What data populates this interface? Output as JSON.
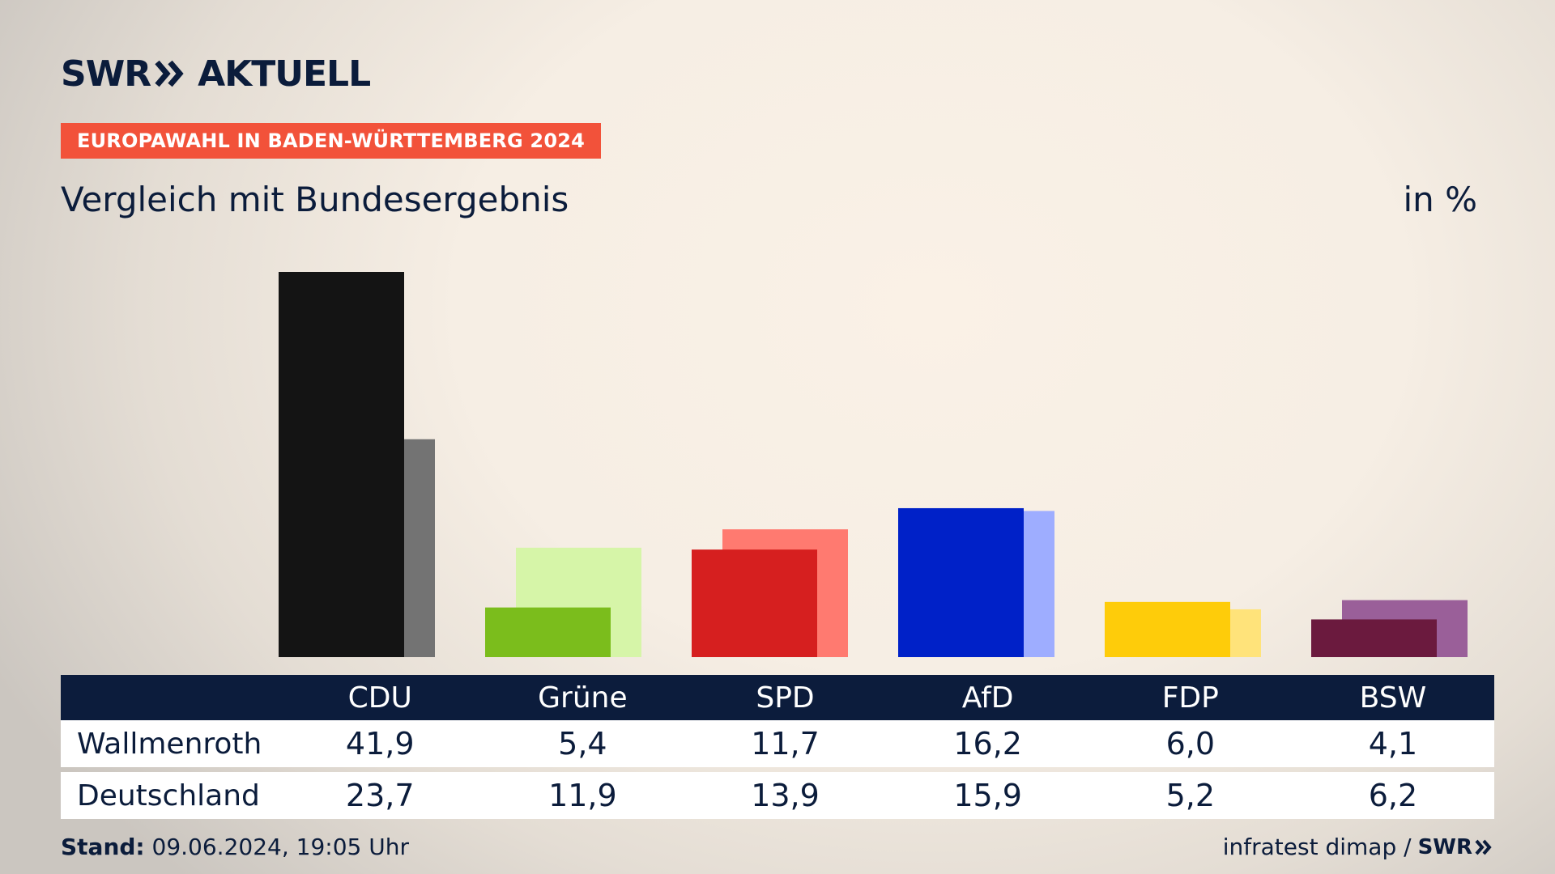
{
  "header": {
    "brand_left": "SWR",
    "brand_right": "AKTUELL",
    "badge": "EUROPAWAHL IN BADEN-WÜRTTEMBERG 2024",
    "subtitle": "Vergleich mit Bundesergebnis",
    "unit": "in %"
  },
  "table": {
    "columns": [
      "CDU",
      "Grüne",
      "SPD",
      "AfD",
      "FDP",
      "BSW"
    ],
    "rows": [
      {
        "label": "Wallmenroth",
        "values": [
          "41,9",
          "5,4",
          "11,7",
          "16,2",
          "6,0",
          "4,1"
        ]
      },
      {
        "label": "Deutschland",
        "values": [
          "23,7",
          "11,9",
          "13,9",
          "15,9",
          "5,2",
          "6,2"
        ]
      }
    ]
  },
  "footer": {
    "stand_label": "Stand:",
    "stand_value": " 09.06.2024, 19:05 Uhr",
    "source": "infratest dimap /",
    "source_brand": "SWR"
  },
  "chart_data": {
    "type": "bar",
    "categories": [
      "CDU",
      "Grüne",
      "SPD",
      "AfD",
      "FDP",
      "BSW"
    ],
    "series": [
      {
        "name": "Wallmenroth",
        "values": [
          41.9,
          5.4,
          11.7,
          16.2,
          6.0,
          4.1
        ],
        "colors": [
          "#141414",
          "#7bbd1c",
          "#d61f1f",
          "#0021c8",
          "#fecc0a",
          "#6b1a3e"
        ]
      },
      {
        "name": "Deutschland",
        "values": [
          23.7,
          11.9,
          13.9,
          15.9,
          5.2,
          6.2
        ],
        "colors": [
          "#737373",
          "#d6f5a8",
          "#ff7a70",
          "#9eadff",
          "#ffe37a",
          "#9a5f99"
        ]
      }
    ],
    "ylim": [
      0,
      41.9
    ],
    "grid": false,
    "legend": "table-below"
  }
}
